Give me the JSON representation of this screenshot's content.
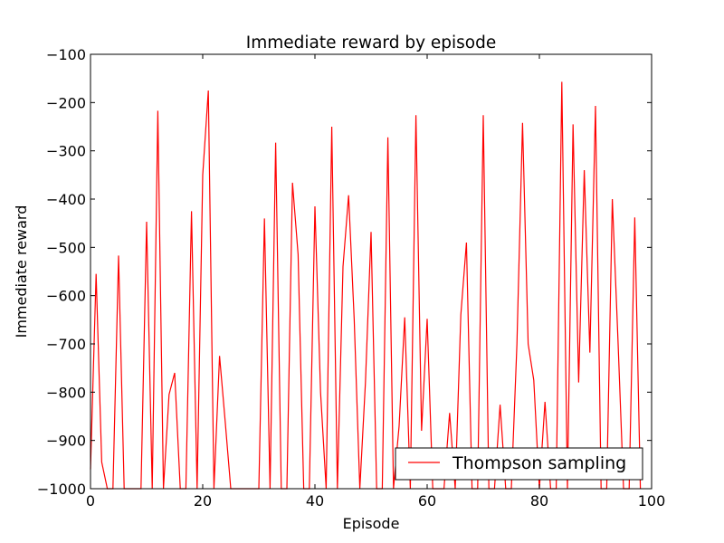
{
  "chart_data": {
    "type": "line",
    "title": "Immediate reward by episode",
    "xlabel": "Episode",
    "ylabel": "Immediate reward",
    "xlim": [
      0,
      100
    ],
    "ylim": [
      -1000,
      -100
    ],
    "xticks": [
      0,
      20,
      40,
      60,
      80,
      100
    ],
    "xtick_labels": [
      "0",
      "20",
      "40",
      "60",
      "80",
      "100"
    ],
    "yticks": [
      -1000,
      -900,
      -800,
      -700,
      -600,
      -500,
      -400,
      -300,
      -200,
      -100
    ],
    "ytick_labels": [
      "−1000",
      "−900",
      "−800",
      "−700",
      "−600",
      "−500",
      "−400",
      "−300",
      "−200",
      "−100"
    ],
    "grid": false,
    "legend_position": "lower right",
    "series": [
      {
        "name": "Thompson sampling",
        "color": "#ff0000",
        "x": [
          0,
          1,
          2,
          3,
          4,
          5,
          6,
          7,
          8,
          9,
          10,
          11,
          12,
          13,
          14,
          15,
          16,
          17,
          18,
          19,
          20,
          21,
          22,
          23,
          24,
          25,
          26,
          27,
          28,
          29,
          30,
          31,
          32,
          33,
          34,
          35,
          36,
          37,
          38,
          39,
          40,
          41,
          42,
          43,
          44,
          45,
          46,
          47,
          48,
          49,
          50,
          51,
          52,
          53,
          54,
          55,
          56,
          57,
          58,
          59,
          60,
          61,
          62,
          63,
          64,
          65,
          66,
          67,
          68,
          69,
          70,
          71,
          72,
          73,
          74,
          75,
          76,
          77,
          78,
          79,
          80,
          81,
          82,
          83,
          84,
          85,
          86,
          87,
          88,
          89,
          90,
          91,
          92,
          93,
          94,
          95,
          96,
          97,
          98
        ],
        "values": [
          -960,
          -555,
          -945,
          -1000,
          -1000,
          -517,
          -1000,
          -1000,
          -1000,
          -1000,
          -447,
          -1000,
          -217,
          -1000,
          -805,
          -760,
          -1000,
          -1000,
          -425,
          -1000,
          -350,
          -175,
          -1000,
          -725,
          -860,
          -1000,
          -1000,
          -1000,
          -1000,
          -1000,
          -1000,
          -440,
          -1000,
          -283,
          -1000,
          -1000,
          -366,
          -515,
          -1000,
          -1000,
          -415,
          -800,
          -1000,
          -250,
          -1000,
          -540,
          -392,
          -650,
          -1000,
          -780,
          -468,
          -1000,
          -1000,
          -272,
          -1000,
          -870,
          -645,
          -1000,
          -226,
          -880,
          -648,
          -1000,
          -1000,
          -1000,
          -843,
          -1000,
          -640,
          -490,
          -1000,
          -1000,
          -226,
          -1000,
          -1000,
          -826,
          -1000,
          -1000,
          -700,
          -242,
          -700,
          -775,
          -1000,
          -820,
          -1000,
          -1000,
          -157,
          -1000,
          -245,
          -780,
          -340,
          -718,
          -207,
          -1000,
          -1000,
          -400,
          -690,
          -1000,
          -1000,
          -438,
          -1000
        ]
      }
    ]
  }
}
